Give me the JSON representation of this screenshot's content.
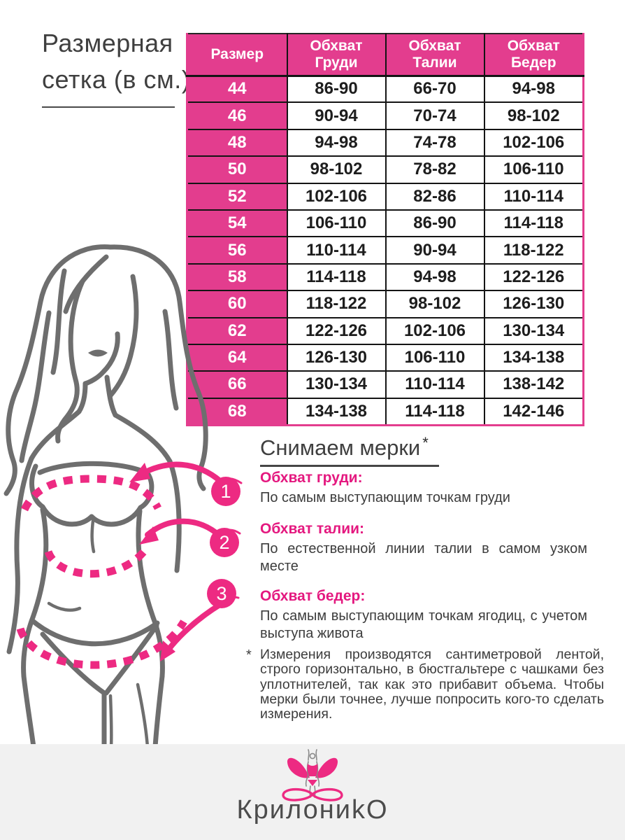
{
  "page": {
    "title_line1": "Размерная",
    "title_line2": "сетка (в см.)"
  },
  "table": {
    "headers": [
      "Размер",
      "Обхват Груди",
      "Обхват Талии",
      "Обхват Бедер"
    ],
    "rows": [
      [
        "44",
        "86-90",
        "66-70",
        "94-98"
      ],
      [
        "46",
        "90-94",
        "70-74",
        "98-102"
      ],
      [
        "48",
        "94-98",
        "74-78",
        "102-106"
      ],
      [
        "50",
        "98-102",
        "78-82",
        "106-110"
      ],
      [
        "52",
        "102-106",
        "82-86",
        "110-114"
      ],
      [
        "54",
        "106-110",
        "86-90",
        "114-118"
      ],
      [
        "56",
        "110-114",
        "90-94",
        "118-122"
      ],
      [
        "58",
        "114-118",
        "94-98",
        "122-126"
      ],
      [
        "60",
        "118-122",
        "98-102",
        "126-130"
      ],
      [
        "62",
        "122-126",
        "102-106",
        "130-134"
      ],
      [
        "64",
        "126-130",
        "106-110",
        "134-138"
      ],
      [
        "66",
        "130-134",
        "110-114",
        "138-142"
      ],
      [
        "68",
        "134-138",
        "114-118",
        "142-146"
      ]
    ]
  },
  "measuring": {
    "heading": "Снимаем мерки",
    "heading_asterisk": "*",
    "steps": [
      {
        "num": "1",
        "label": "Обхват груди:",
        "text": "По самым выступающим точкам груди"
      },
      {
        "num": "2",
        "label": "Обхват талии:",
        "text": "По естественной линии талии в самом узком месте"
      },
      {
        "num": "3",
        "label": "Обхват бедер:",
        "text": "По самым выступающим точкам ягодиц, с учетом выступа живота"
      }
    ],
    "note_mark": "*",
    "note": "Измерения производятся сантиметровой лентой, строго горизонтально, в бюстгальтере с чашками без уплотнителей, так как это прибавит объема. Чтобы мерки были точнее, лучше попросить кого-то сделать измерения."
  },
  "footer": {
    "brand": "КрилониkО",
    "logo_icon": "butterfly-woman-infinity-icon"
  },
  "colors": {
    "accent": "#e33d8e",
    "accent_bright": "#ed2a82",
    "line_gray": "#6e6e6e",
    "text_dark": "#3c3c3c",
    "footer_bg": "#f1f1f1"
  }
}
